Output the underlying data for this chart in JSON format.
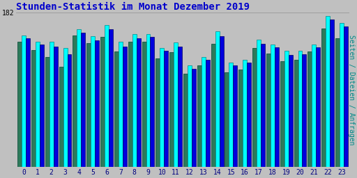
{
  "title": "Stunden-Statistik im Monat Dezember 2019",
  "title_color": "#0000cc",
  "ylabel": "Seiten / Dateien / Anfragen",
  "ylabel_color": "#008888",
  "xlabel_color": "#000080",
  "background_color": "#c0c0c0",
  "plot_bg_color": "#c0c0c0",
  "grid_color": "#999999",
  "ylim_max": 182,
  "ytick_label": "182",
  "hours": [
    0,
    1,
    2,
    3,
    4,
    5,
    6,
    7,
    8,
    9,
    10,
    11,
    12,
    13,
    14,
    15,
    16,
    17,
    18,
    19,
    20,
    21,
    22,
    23
  ],
  "seiten": [
    155,
    148,
    148,
    140,
    162,
    154,
    167,
    148,
    157,
    157,
    140,
    147,
    120,
    130,
    160,
    123,
    126,
    150,
    144,
    137,
    137,
    144,
    178,
    170
  ],
  "dateien": [
    152,
    144,
    142,
    133,
    158,
    149,
    162,
    142,
    152,
    153,
    137,
    142,
    116,
    126,
    154,
    120,
    123,
    145,
    141,
    132,
    133,
    141,
    174,
    166
  ],
  "anfragen": [
    148,
    138,
    130,
    118,
    155,
    146,
    153,
    136,
    148,
    148,
    128,
    135,
    110,
    120,
    145,
    112,
    115,
    140,
    134,
    125,
    126,
    136,
    163,
    152
  ],
  "color_seiten": "#00ffff",
  "color_dateien": "#0000dd",
  "color_anfragen": "#2d7a5a",
  "bar_edge_seiten": "#008888",
  "bar_edge_dateien": "#000066",
  "bar_edge_anfragen": "#004433",
  "bar_width": 0.3
}
